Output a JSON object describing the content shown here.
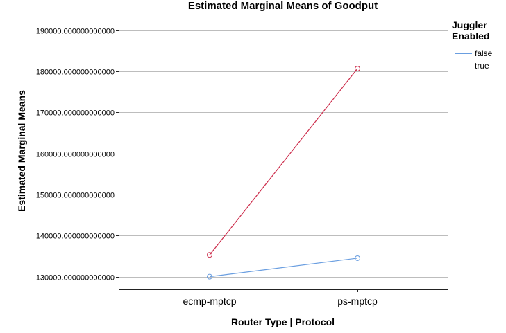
{
  "chart_data": {
    "type": "line",
    "title": "Estimated Marginal Means of Goodput",
    "xlabel": "Router Type | Protocol",
    "ylabel": "Estimated Marginal Means",
    "categories": [
      "ecmp-mptcp",
      "ps-mptcp"
    ],
    "ylim": [
      126900,
      193700
    ],
    "yticks": [
      130000,
      140000,
      150000,
      160000,
      170000,
      180000,
      190000
    ],
    "ytick_labels": [
      "130000.000000000000",
      "140000.000000000000",
      "150000.000000000000",
      "160000.000000000000",
      "170000.000000000000",
      "180000.000000000000",
      "190000.000000000000"
    ],
    "grid": true,
    "legend": {
      "title_line1": "Juggler",
      "title_line2": "Enabled",
      "placement": "right"
    },
    "series": [
      {
        "name": "false",
        "values": [
          130000,
          134500
        ],
        "color": "#6a9ee0"
      },
      {
        "name": "true",
        "values": [
          135300,
          180700
        ],
        "color": "#cc2b4a"
      }
    ]
  }
}
